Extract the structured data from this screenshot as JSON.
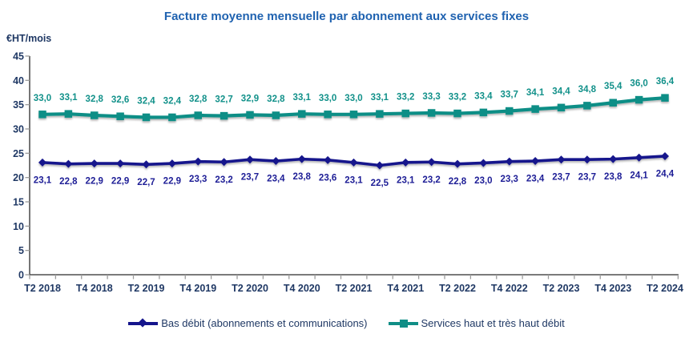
{
  "chart": {
    "title": "Facture moyenne mensuelle par abonnement aux services fixes",
    "unit_label": "€HT/mois"
  },
  "chart_data": {
    "type": "line",
    "title": "Facture moyenne mensuelle par abonnement aux services fixes",
    "ylabel": "€HT/mois",
    "x_tick_labels": [
      "T2 2018",
      "T4 2018",
      "T2 2019",
      "T4 2019",
      "T2 2020",
      "T4 2020",
      "T2 2021",
      "T4 2021",
      "T2 2022",
      "T4 2022",
      "T2 2023",
      "T4 2023",
      "T2 2024"
    ],
    "points_per_x_label": 2,
    "n_points": 25,
    "ylim": [
      0,
      45
    ],
    "ytick_step": 5,
    "grid": false,
    "legend_position": "bottom",
    "decimal_separator": ",",
    "axis_text_color": "#1F3864",
    "axis_line_color": "#2B2B2B",
    "tick_color": "#9B9B9B",
    "series": [
      {
        "name": "Bas débit (abonnements et communications)",
        "color": "#15158C",
        "label_color": "#1D1D96",
        "marker": "diamond",
        "label_side": "below",
        "values": [
          23.1,
          22.8,
          22.9,
          22.9,
          22.7,
          22.9,
          23.3,
          23.2,
          23.7,
          23.4,
          23.8,
          23.6,
          23.1,
          22.5,
          23.1,
          23.2,
          22.8,
          23.0,
          23.3,
          23.4,
          23.7,
          23.7,
          23.8,
          24.1,
          24.4
        ]
      },
      {
        "name": "Services haut et très haut débit",
        "color": "#108E86",
        "label_color": "#12918A",
        "marker": "square",
        "label_side": "above",
        "values": [
          33.0,
          33.1,
          32.8,
          32.6,
          32.4,
          32.4,
          32.8,
          32.7,
          32.9,
          32.8,
          33.1,
          33.0,
          33.0,
          33.1,
          33.2,
          33.3,
          33.2,
          33.4,
          33.7,
          34.1,
          34.4,
          34.8,
          35.4,
          36.0,
          36.4
        ]
      }
    ]
  }
}
